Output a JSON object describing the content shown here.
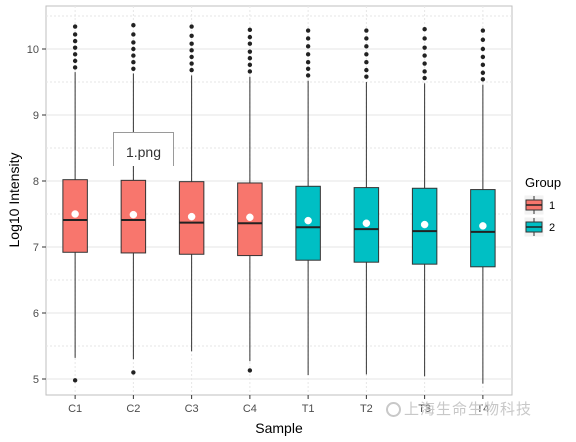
{
  "chart_data": {
    "type": "boxplot",
    "xlabel": "Sample",
    "ylabel": "Log10 Intensity",
    "ylim": [
      4.8,
      10.5
    ],
    "yticks": [
      5,
      6,
      7,
      8,
      9,
      10
    ],
    "grid": true,
    "legend": {
      "title": "Group",
      "position": "right",
      "entries": [
        "1",
        "2"
      ]
    },
    "colors": {
      "1": "#F8766D",
      "2": "#00BFC4"
    },
    "categories": [
      "C1",
      "C2",
      "C3",
      "C4",
      "T1",
      "T2",
      "T3",
      "T4"
    ],
    "boxes": [
      {
        "sample": "C1",
        "group": "1",
        "q1": 6.92,
        "median": 7.41,
        "q3": 8.02,
        "mean": 7.5,
        "whisker_low": 5.32,
        "whisker_high": 9.65,
        "outliers": [
          4.98,
          9.72,
          9.82,
          9.92,
          10.02,
          10.12,
          10.22,
          10.34
        ]
      },
      {
        "sample": "C2",
        "group": "1",
        "q1": 6.91,
        "median": 7.41,
        "q3": 8.01,
        "mean": 7.49,
        "whisker_low": 5.3,
        "whisker_high": 9.63,
        "outliers": [
          5.1,
          9.7,
          9.8,
          9.9,
          10.0,
          10.1,
          10.22,
          10.36
        ]
      },
      {
        "sample": "C3",
        "group": "1",
        "q1": 6.89,
        "median": 7.37,
        "q3": 7.99,
        "mean": 7.46,
        "whisker_low": 5.42,
        "whisker_high": 9.6,
        "outliers": [
          9.68,
          9.78,
          9.88,
          9.98,
          10.08,
          10.2,
          10.34
        ]
      },
      {
        "sample": "C4",
        "group": "1",
        "q1": 6.87,
        "median": 7.36,
        "q3": 7.97,
        "mean": 7.45,
        "whisker_low": 5.27,
        "whisker_high": 9.58,
        "outliers": [
          5.13,
          9.66,
          9.76,
          9.86,
          9.96,
          10.08,
          10.18,
          10.29
        ]
      },
      {
        "sample": "T1",
        "group": "2",
        "q1": 6.8,
        "median": 7.3,
        "q3": 7.92,
        "mean": 7.4,
        "whisker_low": 5.06,
        "whisker_high": 9.52,
        "outliers": [
          9.6,
          9.7,
          9.8,
          9.92,
          10.04,
          10.16,
          10.28
        ]
      },
      {
        "sample": "T2",
        "group": "2",
        "q1": 6.77,
        "median": 7.27,
        "q3": 7.9,
        "mean": 7.36,
        "whisker_low": 5.07,
        "whisker_high": 9.5,
        "outliers": [
          9.58,
          9.68,
          9.8,
          9.92,
          10.04,
          10.16,
          10.28
        ]
      },
      {
        "sample": "T3",
        "group": "2",
        "q1": 6.74,
        "median": 7.24,
        "q3": 7.89,
        "mean": 7.34,
        "whisker_low": 5.04,
        "whisker_high": 9.48,
        "outliers": [
          9.56,
          9.66,
          9.78,
          9.9,
          10.02,
          10.16,
          10.3
        ]
      },
      {
        "sample": "T4",
        "group": "2",
        "q1": 6.7,
        "median": 7.23,
        "q3": 7.87,
        "mean": 7.32,
        "whisker_low": 4.93,
        "whisker_high": 9.46,
        "outliers": [
          9.54,
          9.64,
          9.76,
          9.88,
          10.0,
          10.14,
          10.28
        ]
      }
    ]
  },
  "overlay": {
    "tooltip_text": "1.png",
    "watermark_text": "上海生命生物科技"
  }
}
